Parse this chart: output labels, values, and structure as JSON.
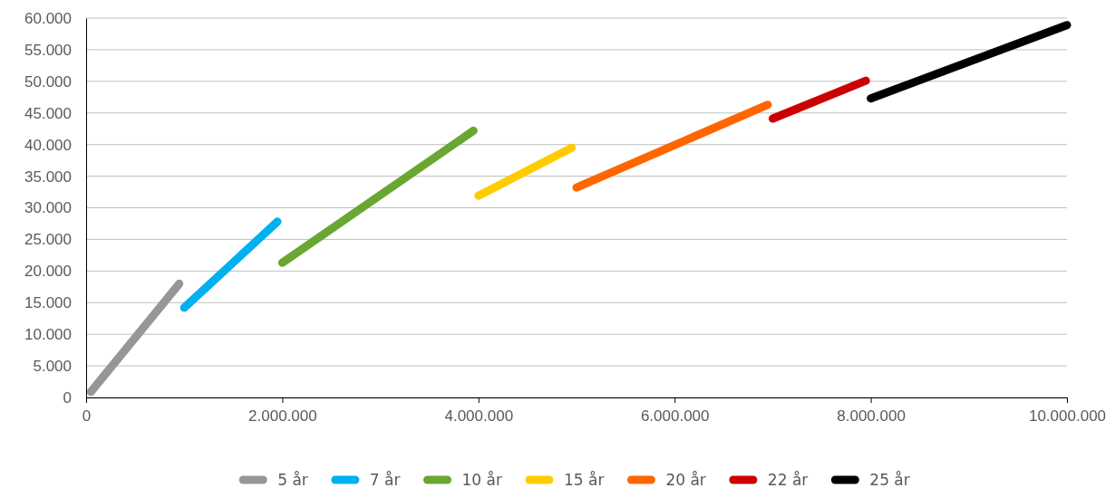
{
  "chart_data": {
    "type": "line",
    "xlim": [
      0,
      10000000
    ],
    "ylim": [
      0,
      60000
    ],
    "xticks": [
      0,
      {
        "value": 2000000,
        "label": "2.000.000"
      },
      {
        "value": 4000000,
        "label": "4.000.000"
      },
      {
        "value": 6000000,
        "label": "6.000.000"
      },
      {
        "value": 8000000,
        "label": "8.000.000"
      },
      {
        "value": 10000000,
        "label": "10.000.000"
      }
    ],
    "yticks": [
      0,
      {
        "value": 5000,
        "label": "5.000"
      },
      {
        "value": 10000,
        "label": "10.000"
      },
      {
        "value": 15000,
        "label": "15.000"
      },
      {
        "value": 20000,
        "label": "20.000"
      },
      {
        "value": 25000,
        "label": "25.000"
      },
      {
        "value": 30000,
        "label": "30.000"
      },
      {
        "value": 35000,
        "label": "35.000"
      },
      {
        "value": 40000,
        "label": "40.000"
      },
      {
        "value": 45000,
        "label": "45.000"
      },
      {
        "value": 50000,
        "label": "50.000"
      },
      {
        "value": 55000,
        "label": "55.000"
      },
      {
        "value": 60000,
        "label": "60.000"
      }
    ],
    "grid": "y",
    "legend": "bottom",
    "marker": "none",
    "line_style": "solid",
    "series": [
      {
        "name": "5 år",
        "color": "#969696",
        "x": [
          50000,
          950000
        ],
        "values": [
          900,
          18000
        ]
      },
      {
        "name": "7 år",
        "color": "#00b0f0",
        "x": [
          1000000,
          1950000
        ],
        "values": [
          14200,
          27800
        ]
      },
      {
        "name": "10 år",
        "color": "#6aa632",
        "x": [
          2000000,
          3950000
        ],
        "values": [
          21300,
          42200
        ]
      },
      {
        "name": "15 år",
        "color": "#ffcc00",
        "x": [
          4000000,
          4950000
        ],
        "values": [
          31900,
          39500
        ]
      },
      {
        "name": "20 år",
        "color": "#ff6600",
        "x": [
          5000000,
          6950000
        ],
        "values": [
          33200,
          46300
        ]
      },
      {
        "name": "22 år",
        "color": "#cc0000",
        "x": [
          7000000,
          7950000
        ],
        "values": [
          44100,
          50100
        ]
      },
      {
        "name": "25 år",
        "color": "#000000",
        "x": [
          8000000,
          10000000
        ],
        "values": [
          47300,
          58900
        ]
      }
    ]
  }
}
